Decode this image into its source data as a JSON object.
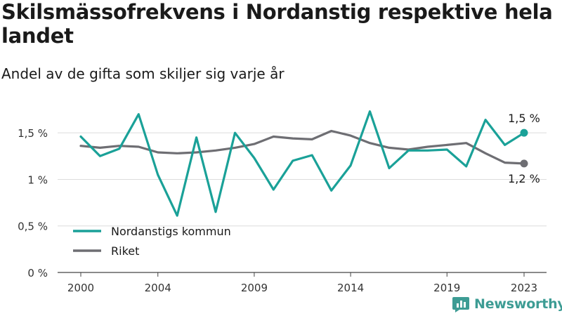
{
  "header": {
    "title": "Skilsmässofrekvens i Nordanstig respektive hela landet",
    "subtitle": "Andel av de gifta som skiljer sig varje år"
  },
  "brand": {
    "name": "Newsworthy"
  },
  "colors": {
    "nordanstig": "#1aa198",
    "riket": "#6e6e73",
    "grid": "#dcdcdc"
  },
  "chart_data": {
    "type": "line",
    "title": "Skilsmässofrekvens i Nordanstig respektive hela landet",
    "subtitle": "Andel av de gifta som skiljer sig varje år",
    "x": [
      2000,
      2001,
      2002,
      2003,
      2004,
      2005,
      2006,
      2007,
      2008,
      2009,
      2010,
      2011,
      2012,
      2013,
      2014,
      2015,
      2016,
      2017,
      2018,
      2019,
      2020,
      2021,
      2022,
      2023
    ],
    "x_ticks": [
      2000,
      2004,
      2009,
      2014,
      2019,
      2023
    ],
    "y_ticks": [
      0,
      0.5,
      1,
      1.5
    ],
    "y_tick_labels": [
      "0 %",
      "0,5 %",
      "1 %",
      "1,5 %"
    ],
    "ylim": [
      0,
      1.72
    ],
    "series": [
      {
        "name": "Nordanstigs kommun",
        "color": "#1aa198",
        "values": [
          1.46,
          1.25,
          1.33,
          1.7,
          1.05,
          0.61,
          1.45,
          0.65,
          1.5,
          1.23,
          0.89,
          1.2,
          1.26,
          0.88,
          1.15,
          1.73,
          1.12,
          1.31,
          1.31,
          1.32,
          1.14,
          1.64,
          1.37,
          1.5
        ],
        "end_label": "1,5 %"
      },
      {
        "name": "Riket",
        "color": "#6e6e73",
        "values": [
          1.36,
          1.34,
          1.36,
          1.35,
          1.29,
          1.28,
          1.29,
          1.31,
          1.34,
          1.38,
          1.46,
          1.44,
          1.43,
          1.52,
          1.47,
          1.39,
          1.34,
          1.32,
          1.35,
          1.37,
          1.39,
          1.28,
          1.18,
          1.17
        ],
        "end_label": "1,2 %"
      }
    ],
    "legend": {
      "position": "bottom-left"
    },
    "grid": true
  }
}
